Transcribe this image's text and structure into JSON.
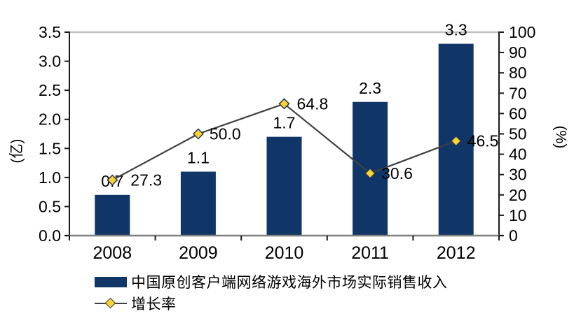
{
  "chart_data": {
    "type": "combo",
    "title": "",
    "categories": [
      "2008",
      "2009",
      "2010",
      "2011",
      "2012"
    ],
    "series": [
      {
        "name": "中国原创客户端网络游戏海外市场实际销售收入",
        "type": "bar",
        "axis": "left",
        "values": [
          0.7,
          1.1,
          1.7,
          2.3,
          3.3
        ],
        "labels": [
          "0.7",
          "1.1",
          "1.7",
          "2.3",
          "3.3"
        ]
      },
      {
        "name": "增长率",
        "type": "line",
        "axis": "right",
        "values": [
          27.3,
          50.0,
          64.8,
          30.6,
          46.5
        ],
        "labels": [
          "27.3",
          "50.0",
          "64.8",
          "30.6",
          "46.5"
        ],
        "marker": "diamond",
        "label_dx": [
          26,
          16,
          18,
          16,
          16
        ]
      }
    ],
    "left_axis": {
      "title": "(亿)",
      "min": 0,
      "max": 3.5,
      "step": 0.5,
      "ticks": [
        "0.0",
        "0.5",
        "1.0",
        "1.5",
        "2.0",
        "2.5",
        "3.0",
        "3.5"
      ]
    },
    "right_axis": {
      "title": "(%)",
      "min": 0,
      "max": 100,
      "step": 10,
      "ticks": [
        "0",
        "10",
        "20",
        "30",
        "40",
        "50",
        "60",
        "70",
        "80",
        "90",
        "100"
      ]
    },
    "legend": {
      "position": "bottom-left",
      "items": [
        {
          "label": "中国原创客户端网络游戏海外市场实际销售收入",
          "swatch": "bar"
        },
        {
          "label": "增长率",
          "swatch": "line-diamond"
        }
      ]
    },
    "grid": {
      "only_top_border": true
    },
    "colors": {
      "bar": "#0F3667",
      "line": "#404040",
      "marker_fill": "#FFD428",
      "marker_stroke": "#1F3864",
      "axis": "#1A1A1A",
      "x_axis_line": "#7F7F7F",
      "top_gridline": "#C0C0C0"
    }
  }
}
